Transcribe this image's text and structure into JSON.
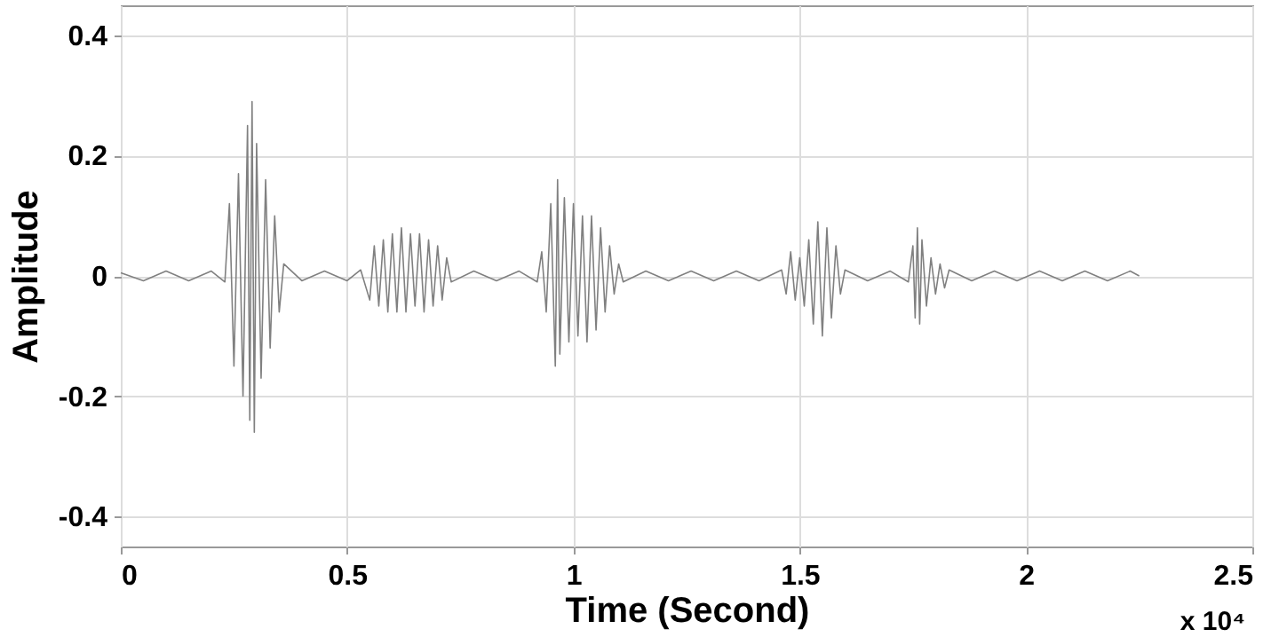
{
  "chart_data": {
    "type": "line",
    "xlabel": "Time (Second)",
    "ylabel": "Amplitude",
    "annotations": [
      "x 10⁴"
    ],
    "x": [
      0,
      0.05,
      0.1,
      0.15,
      0.2,
      0.23,
      0.24,
      0.25,
      0.26,
      0.27,
      0.28,
      0.285,
      0.29,
      0.295,
      0.3,
      0.31,
      0.32,
      0.33,
      0.34,
      0.35,
      0.36,
      0.4,
      0.45,
      0.5,
      0.53,
      0.55,
      0.56,
      0.57,
      0.58,
      0.59,
      0.6,
      0.61,
      0.62,
      0.63,
      0.64,
      0.65,
      0.66,
      0.67,
      0.68,
      0.69,
      0.7,
      0.71,
      0.72,
      0.73,
      0.78,
      0.83,
      0.88,
      0.92,
      0.93,
      0.94,
      0.95,
      0.96,
      0.965,
      0.97,
      0.98,
      0.99,
      1.0,
      1.01,
      1.02,
      1.03,
      1.04,
      1.05,
      1.06,
      1.07,
      1.08,
      1.09,
      1.1,
      1.11,
      1.16,
      1.21,
      1.26,
      1.31,
      1.36,
      1.41,
      1.46,
      1.47,
      1.48,
      1.49,
      1.5,
      1.51,
      1.52,
      1.53,
      1.54,
      1.55,
      1.56,
      1.57,
      1.58,
      1.59,
      1.6,
      1.65,
      1.7,
      1.74,
      1.75,
      1.755,
      1.76,
      1.765,
      1.77,
      1.78,
      1.79,
      1.8,
      1.81,
      1.82,
      1.83,
      1.88,
      1.93,
      1.98,
      2.03,
      2.08,
      2.13,
      2.18,
      2.23,
      2.25
    ],
    "series": [
      {
        "color": "#808080",
        "values": [
          0.005,
          -0.008,
          0.008,
          -0.008,
          0.008,
          -0.01,
          0.12,
          -0.15,
          0.17,
          -0.2,
          0.25,
          -0.24,
          0.29,
          -0.26,
          0.22,
          -0.17,
          0.16,
          -0.12,
          0.1,
          -0.06,
          0.02,
          -0.008,
          0.008,
          -0.008,
          0.01,
          -0.04,
          0.05,
          -0.05,
          0.06,
          -0.06,
          0.07,
          -0.06,
          0.08,
          -0.06,
          0.07,
          -0.05,
          0.07,
          -0.06,
          0.06,
          -0.05,
          0.05,
          -0.04,
          0.03,
          -0.01,
          0.008,
          -0.008,
          0.008,
          -0.01,
          0.04,
          -0.06,
          0.12,
          -0.15,
          0.16,
          -0.13,
          0.13,
          -0.11,
          0.12,
          -0.1,
          0.1,
          -0.11,
          0.1,
          -0.09,
          0.08,
          -0.06,
          0.05,
          -0.03,
          0.02,
          -0.01,
          0.008,
          -0.008,
          0.008,
          -0.008,
          0.008,
          -0.008,
          0.01,
          -0.03,
          0.04,
          -0.04,
          0.03,
          -0.05,
          0.06,
          -0.08,
          0.09,
          -0.1,
          0.08,
          -0.07,
          0.05,
          -0.03,
          0.01,
          -0.008,
          0.008,
          -0.01,
          0.05,
          -0.07,
          0.08,
          -0.08,
          0.06,
          -0.05,
          0.03,
          -0.03,
          0.02,
          -0.02,
          0.01,
          -0.008,
          0.008,
          -0.008,
          0.008,
          -0.008,
          0.008,
          -0.008,
          0.008,
          0
        ]
      }
    ],
    "xlim": [
      0,
      2.5
    ],
    "xticks": [
      0,
      0.5,
      1,
      1.5,
      2,
      2.5
    ],
    "ylim": [
      -0.45,
      0.45
    ],
    "yticks": [
      -0.4,
      -0.2,
      0,
      0.2,
      0.4
    ],
    "grid": true,
    "marker": "none",
    "line_style": "solid"
  }
}
